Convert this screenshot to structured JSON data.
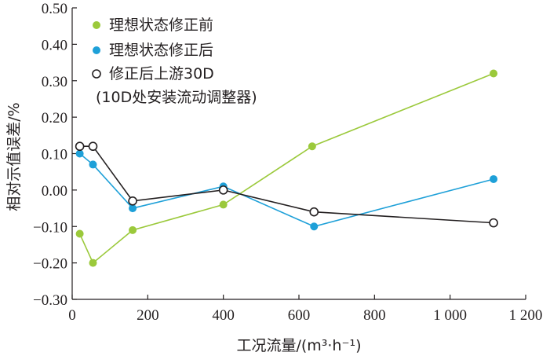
{
  "chart_data": {
    "type": "line",
    "xlabel": "工况流量/(m³·h⁻¹)",
    "ylabel": "相对示值误差/%",
    "xlim": [
      0,
      1200
    ],
    "ylim": [
      -0.3,
      0.5
    ],
    "x_ticks": [
      {
        "value": 0,
        "label": "0"
      },
      {
        "value": 200,
        "label": "200"
      },
      {
        "value": 400,
        "label": "400"
      },
      {
        "value": 600,
        "label": "600"
      },
      {
        "value": 800,
        "label": "800"
      },
      {
        "value": 1000,
        "label": "1 000"
      },
      {
        "value": 1200,
        "label": "1 200"
      }
    ],
    "y_ticks": [
      {
        "value": 0.5,
        "label": "0.50"
      },
      {
        "value": 0.4,
        "label": "0.40"
      },
      {
        "value": 0.3,
        "label": "0.30"
      },
      {
        "value": 0.2,
        "label": "0.20"
      },
      {
        "value": 0.1,
        "label": "0.10"
      },
      {
        "value": 0.0,
        "label": "0.00"
      },
      {
        "value": -0.1,
        "label": "−0.10"
      },
      {
        "value": -0.2,
        "label": "−0.20"
      },
      {
        "value": -0.3,
        "label": "−0.30"
      }
    ],
    "grid": false,
    "legend_position": "top-left",
    "series": [
      {
        "name": "理想状态修正前",
        "color": "#9bc93b",
        "marker": "filled-circle",
        "x": [
          20,
          55,
          160,
          400,
          635,
          1115
        ],
        "y": [
          -0.12,
          -0.2,
          -0.11,
          -0.04,
          0.12,
          0.32
        ]
      },
      {
        "name": "理想状态修正后",
        "color": "#1ea0d8",
        "marker": "filled-circle",
        "x": [
          20,
          55,
          160,
          400,
          640,
          1115
        ],
        "y": [
          0.1,
          0.07,
          -0.05,
          0.01,
          -0.1,
          0.03
        ]
      },
      {
        "name": "修正后上游30D",
        "name_line2": "(10D处安装流动调整器)",
        "color": "#231f20",
        "marker": "open-circle",
        "x": [
          20,
          55,
          160,
          400,
          640,
          1115
        ],
        "y": [
          0.12,
          0.12,
          -0.03,
          0.0,
          -0.06,
          -0.09
        ]
      }
    ]
  }
}
